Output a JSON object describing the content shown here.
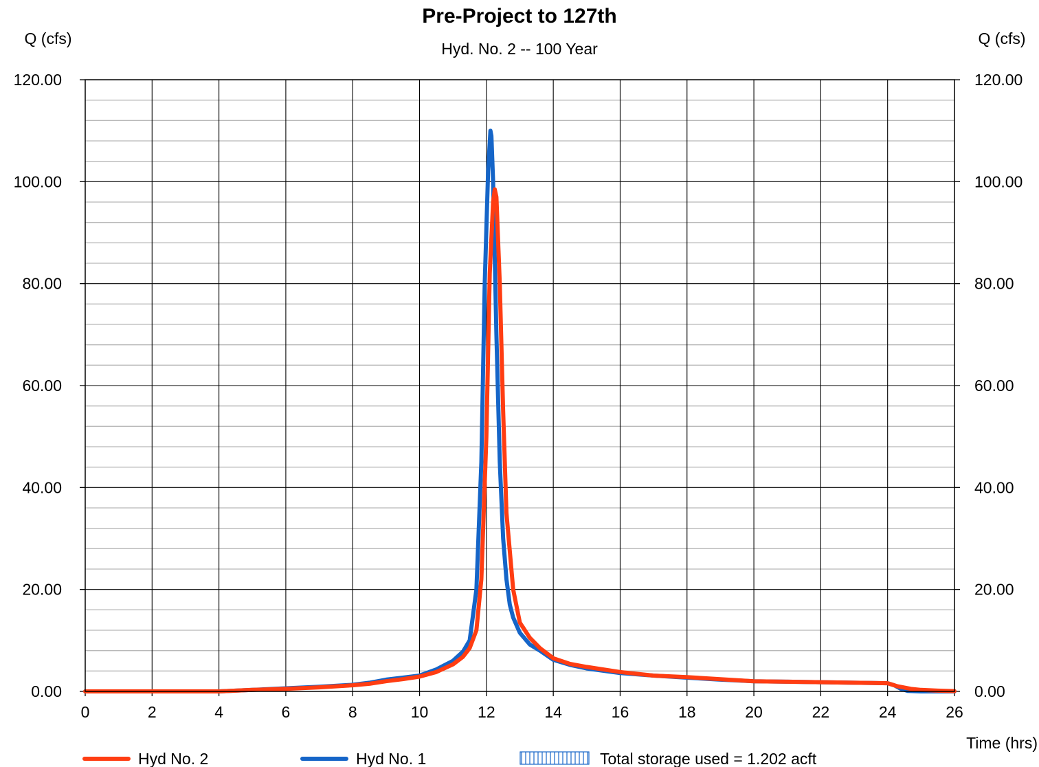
{
  "chart_data": {
    "type": "line",
    "title": "Pre-Project to 127th",
    "subtitle": "Hyd. No. 2 -- 100 Year",
    "ylabel_left": "Q (cfs)",
    "ylabel_right": "Q (cfs)",
    "xlabel": "Time (hrs)",
    "xlim": [
      0,
      26
    ],
    "ylim": [
      0,
      120
    ],
    "x_ticks": [
      "0",
      "2",
      "4",
      "6",
      "8",
      "10",
      "12",
      "14",
      "16",
      "18",
      "20",
      "22",
      "24",
      "26"
    ],
    "y_ticks": [
      "0.00",
      "20.00",
      "40.00",
      "60.00",
      "80.00",
      "100.00",
      "120.00"
    ],
    "grid": true,
    "series": [
      {
        "name": "Hyd No. 2",
        "color": "#ff3d12",
        "x": [
          0,
          4,
          5,
          6,
          7,
          8,
          8.5,
          9,
          9.5,
          10,
          10.5,
          11,
          11.3,
          11.5,
          11.7,
          11.85,
          12.0,
          12.1,
          12.2,
          12.25,
          12.3,
          12.4,
          12.5,
          12.6,
          12.8,
          13.0,
          13.3,
          13.6,
          14.0,
          14.5,
          15.0,
          16.0,
          17.0,
          18.0,
          19.0,
          20.0,
          21.0,
          22.0,
          23.0,
          24.0,
          24.3,
          24.7,
          25.0,
          25.5,
          26.0
        ],
        "y": [
          0,
          0,
          0.3,
          0.5,
          0.8,
          1.2,
          1.5,
          2.0,
          2.4,
          2.9,
          3.8,
          5.3,
          6.8,
          8.5,
          12,
          22,
          50,
          82,
          96,
          98.5,
          97,
          80,
          55,
          35,
          20,
          13.5,
          10.5,
          8.5,
          6.5,
          5.4,
          4.8,
          3.8,
          3.1,
          2.8,
          2.4,
          2.0,
          1.9,
          1.8,
          1.7,
          1.6,
          1.0,
          0.5,
          0.3,
          0.15,
          0.05
        ]
      },
      {
        "name": "Hyd No. 1",
        "color": "#1565c8",
        "x": [
          0,
          4,
          5,
          6,
          7,
          8,
          8.5,
          9,
          9.5,
          10,
          10.5,
          11,
          11.3,
          11.5,
          11.7,
          11.85,
          11.95,
          12.05,
          12.12,
          12.15,
          12.2,
          12.3,
          12.4,
          12.5,
          12.6,
          12.7,
          12.8,
          13.0,
          13.3,
          13.6,
          14.0,
          14.5,
          15.0,
          16.0,
          17.0,
          18.0,
          19.0,
          20.0,
          21.0,
          22.0,
          23.0,
          24.0,
          24.2,
          24.4,
          24.6,
          25.0,
          26.0
        ],
        "y": [
          0,
          0,
          0.3,
          0.6,
          0.9,
          1.3,
          1.7,
          2.3,
          2.7,
          3.1,
          4.3,
          6.0,
          7.8,
          10,
          20,
          45,
          80,
          102,
          110,
          109,
          100,
          70,
          45,
          30,
          22,
          17,
          14.5,
          11.5,
          9.2,
          8.0,
          6.2,
          5.2,
          4.5,
          3.6,
          3.1,
          2.7,
          2.3,
          2.0,
          1.9,
          1.8,
          1.7,
          1.6,
          1.2,
          0.5,
          0.1,
          0,
          0
        ]
      }
    ],
    "legend": {
      "placement": "bottom",
      "items": [
        "Hyd No. 2",
        "Hyd No. 1"
      ],
      "storage_text": "Total storage used = 1.202 acft",
      "storage_color": "#1565c8"
    }
  }
}
